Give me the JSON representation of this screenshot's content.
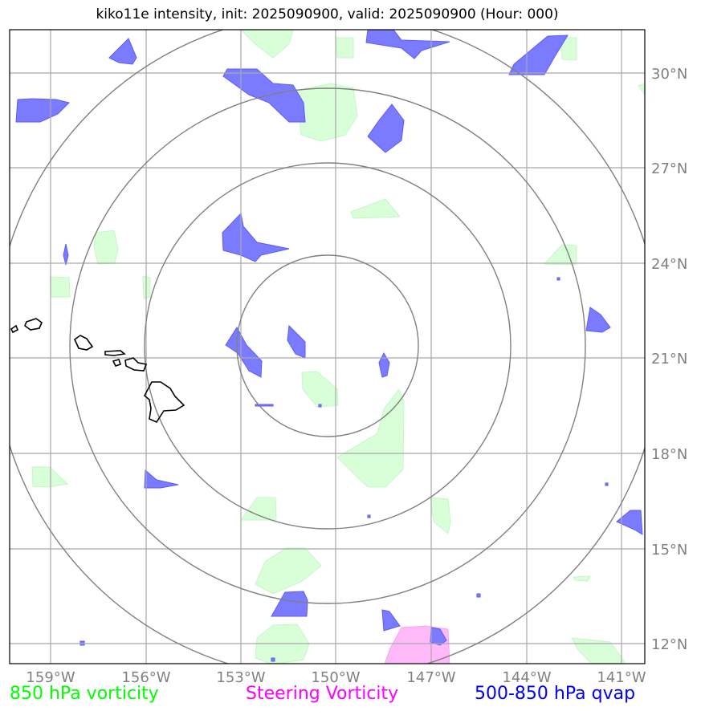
{
  "title": "kiko11e intensity, init: 2025090900, valid: 2025090900 (Hour: 000)",
  "longitude_labels": [
    "159°W",
    "156°W",
    "153°W",
    "150°W",
    "147°W",
    "144°W",
    "141°W"
  ],
  "latitude_labels": [
    "30°N",
    "27°N",
    "24°N",
    "21°N",
    "18°N",
    "15°N",
    "12°N"
  ],
  "legend": [
    {
      "label": "850 hPa vorticity",
      "color": "#00ff00"
    },
    {
      "label": "Steering Vorticity",
      "color": "#ff00ff"
    },
    {
      "label": "500-850 hPa qvap",
      "color": "#0000ff"
    }
  ],
  "colors": {
    "vorticity_850_fill": "#d8ffd8",
    "qvap_fill": "#7b7bff",
    "steering_fill": "#ffb8f8",
    "range_rings": "#808080",
    "gridlines": "#a8a8a8",
    "coastline": "#000000"
  }
}
